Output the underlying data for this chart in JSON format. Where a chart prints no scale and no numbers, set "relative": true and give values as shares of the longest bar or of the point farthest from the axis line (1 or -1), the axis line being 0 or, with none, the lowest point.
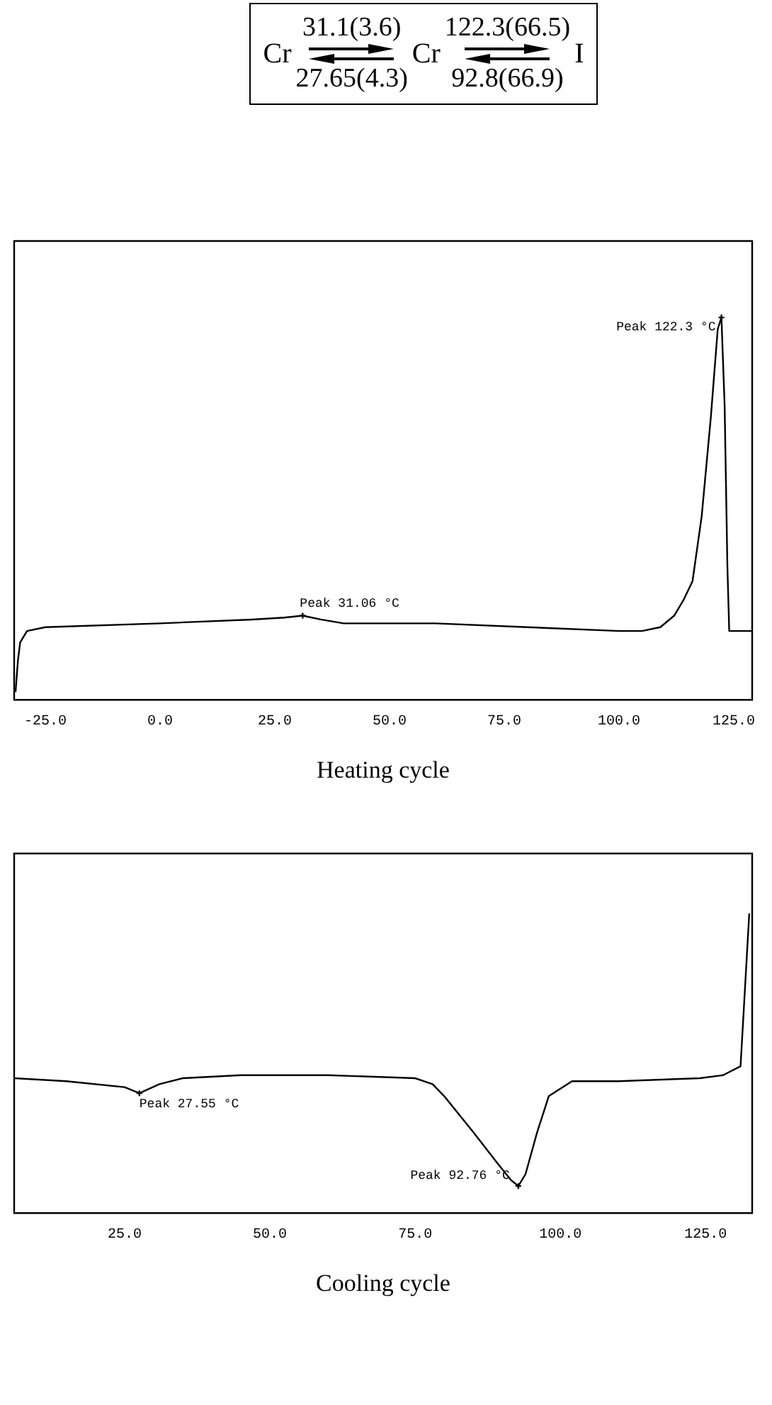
{
  "chart_data": [
    {
      "type": "other",
      "annotations": [
        "Cr",
        "31.1(3.6)",
        "27.65(4.3)",
        "Cr",
        "122.3(66.5)",
        "92.8(66.9)",
        "I"
      ]
    },
    {
      "type": "line",
      "relative": true,
      "xlabel": "Heating cycle",
      "tick_labels": "x",
      "xlim": [
        -31.8,
        129
      ],
      "xticks": [
        {
          "value": -25,
          "label": "-25.0"
        },
        {
          "value": 0,
          "label": "0.0"
        },
        {
          "value": 25,
          "label": "25.0"
        },
        {
          "value": 50,
          "label": "50.0"
        },
        {
          "value": 75,
          "label": "75.0"
        },
        {
          "value": 100,
          "label": "100.0"
        },
        {
          "value": 125,
          "label": "125.0"
        }
      ],
      "series": [
        {
          "color": "#000000",
          "x": [
            -31.5,
            -31,
            -30.5,
            -29,
            -25,
            0,
            20,
            27,
            31.06,
            35,
            40,
            60,
            80,
            100,
            105,
            109,
            112,
            114,
            116,
            118,
            120,
            121.5,
            122.3,
            123,
            123.6,
            124,
            129
          ],
          "values": [
            0.02,
            0.1,
            0.15,
            0.18,
            0.19,
            0.2,
            0.21,
            0.215,
            0.22,
            0.21,
            0.2,
            0.2,
            0.19,
            0.18,
            0.18,
            0.19,
            0.22,
            0.26,
            0.31,
            0.48,
            0.74,
            0.97,
            1,
            0.77,
            0.35,
            0.18,
            0.18
          ]
        }
      ],
      "annotations": [
        {
          "text": "Peak 31.06 °C",
          "x": 31.06,
          "y": 0.22
        },
        {
          "text": "Peak 122.3 °C",
          "x": 122.3,
          "y": 1
        }
      ]
    },
    {
      "type": "line",
      "relative": true,
      "xlabel": "Cooling cycle",
      "tick_labels": "x",
      "xlim": [
        6,
        133
      ],
      "xticks": [
        {
          "value": 25,
          "label": "25.0"
        },
        {
          "value": 50,
          "label": "50.0"
        },
        {
          "value": 75,
          "label": "75.0"
        },
        {
          "value": 100,
          "label": "100.0"
        },
        {
          "value": 125,
          "label": "125.0"
        }
      ],
      "series": [
        {
          "color": "#000000",
          "x": [
            6,
            15,
            25,
            27.55,
            31,
            35,
            45,
            60,
            75,
            78,
            80,
            85,
            89,
            91.5,
            92.76,
            94,
            96,
            98,
            102,
            110,
            124,
            128,
            131,
            132.5
          ],
          "values": [
            0.45,
            0.44,
            0.42,
            0.4,
            0.43,
            0.45,
            0.46,
            0.46,
            0.45,
            0.43,
            0.39,
            0.27,
            0.17,
            0.11,
            0.09,
            0.13,
            0.27,
            0.39,
            0.44,
            0.44,
            0.45,
            0.46,
            0.49,
            1
          ]
        }
      ],
      "annotations": [
        {
          "text": "Peak 27.55 °C",
          "x": 27.55,
          "y": 0.4
        },
        {
          "text": "Peak 92.76 °C",
          "x": 92.76,
          "y": 0.09
        }
      ]
    }
  ]
}
